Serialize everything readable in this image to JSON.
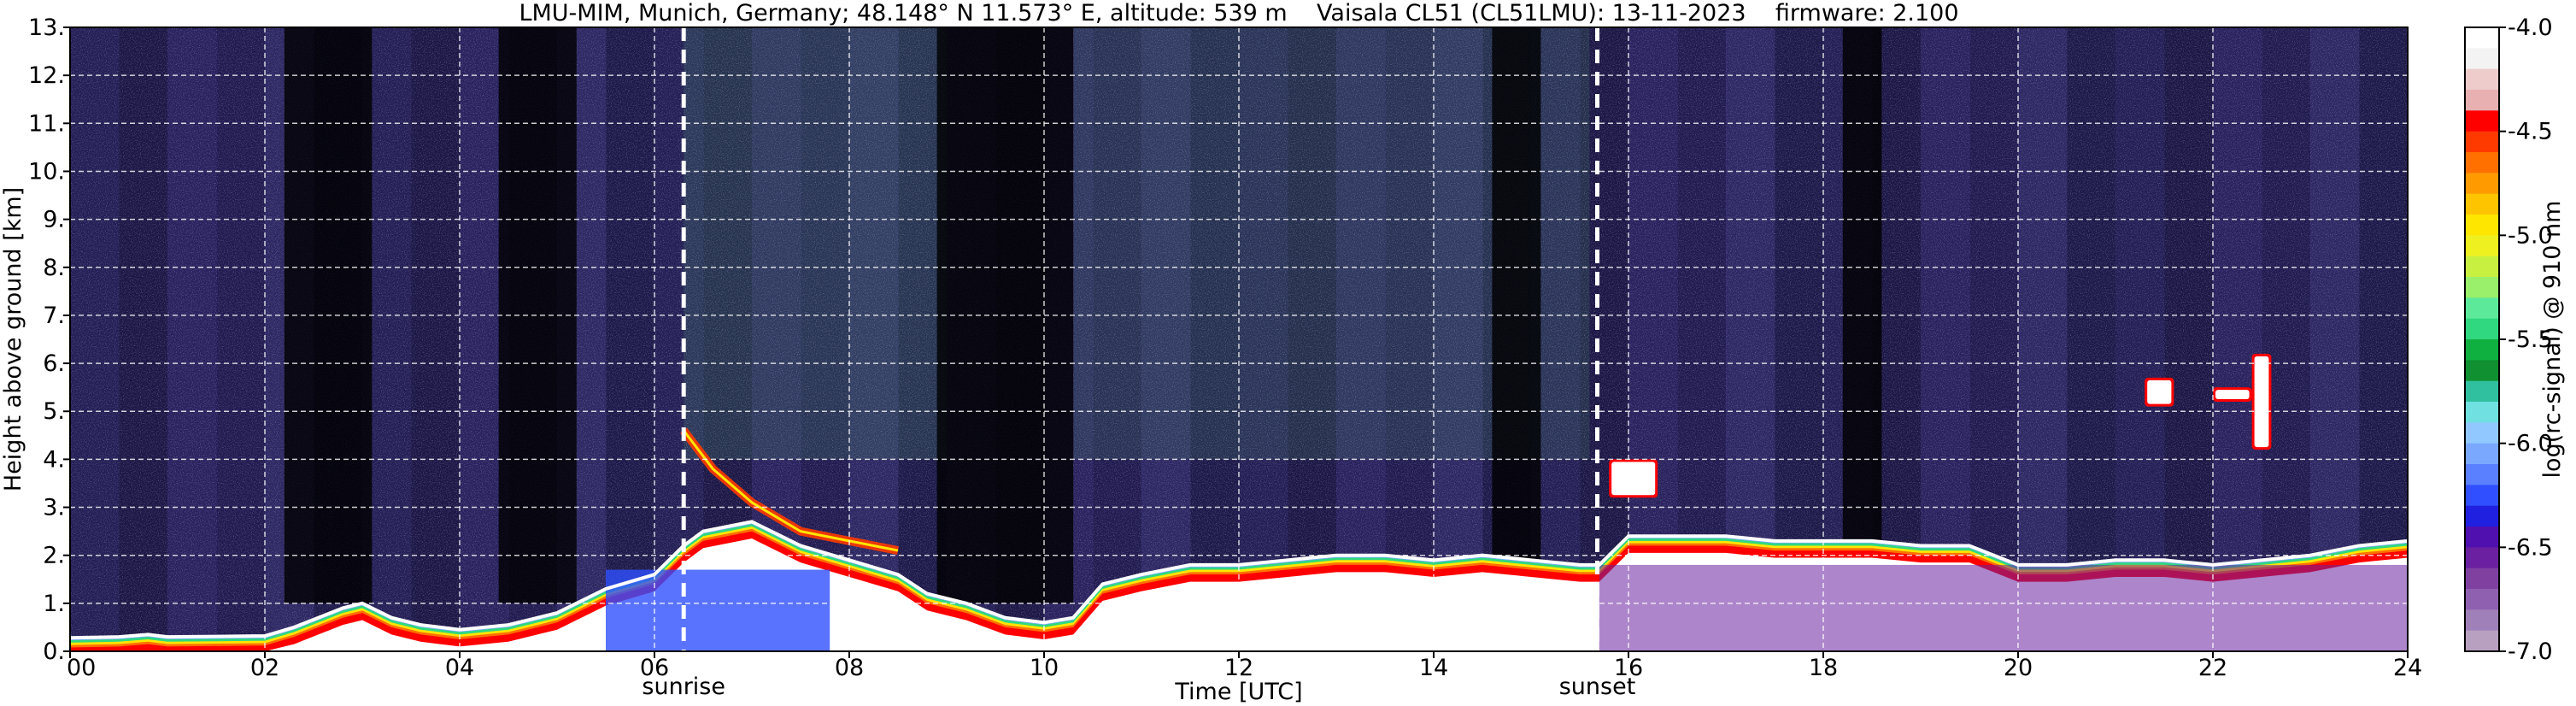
{
  "chart_data": {
    "type": "heatmap",
    "title": "LMU-MIM, Munich, Germany; 48.148° N 11.573° E, altitude: 539 m    Vaisala CL51 (CL51LMU): 13-11-2023    firmware: 2.100",
    "xlabel": "Time [UTC]",
    "ylabel": "Height above ground [km]",
    "xlim": [
      0,
      24
    ],
    "ylim": [
      0,
      13
    ],
    "x_ticks": [
      0,
      2,
      4,
      6,
      8,
      10,
      12,
      14,
      16,
      18,
      20,
      22,
      24
    ],
    "x_tick_labels": [
      "00",
      "02",
      "04",
      "06",
      "08",
      "10",
      "12",
      "14",
      "16",
      "18",
      "20",
      "22",
      "24"
    ],
    "y_ticks": [
      0,
      1,
      2,
      3,
      4,
      5,
      6,
      7,
      8,
      9,
      10,
      11,
      12,
      13
    ],
    "y_tick_labels": [
      "0.",
      "1.",
      "2.",
      "3.",
      "4.",
      "5.",
      "6.",
      "7.",
      "8.",
      "9.",
      "10.",
      "11.",
      "12.",
      "13."
    ],
    "grid": true,
    "markers": [
      {
        "label": "sunrise",
        "x": 6.3
      },
      {
        "label": "sunset",
        "x": 15.68
      }
    ],
    "colorbar": {
      "label": "log(rc-signal) @ 910 nm",
      "range": [
        -7.0,
        -4.0
      ],
      "tick_labels": [
        "-4.0",
        "-4.5",
        "-5.0",
        "-5.5",
        "-6.0",
        "-6.5",
        "-7.0"
      ],
      "tick_values": [
        -4.0,
        -4.5,
        -5.0,
        -5.5,
        -6.0,
        -6.5,
        -7.0
      ]
    },
    "colors": [
      "#ffffff",
      "#f3f3f3",
      "#eecccc",
      "#e8b0b0",
      "#ff0000",
      "#ff3a00",
      "#ff7000",
      "#ff9a00",
      "#ffc400",
      "#ffe600",
      "#eef020",
      "#c8f040",
      "#9af06a",
      "#5cea9a",
      "#30d880",
      "#10b040",
      "#109030",
      "#30c0a0",
      "#70e0e0",
      "#90c8ff",
      "#7aa8ff",
      "#5a80ff",
      "#3050ff",
      "#2020e0",
      "#5010b0",
      "#6a20a0",
      "#8040a0",
      "#9060b0",
      "#a080b8",
      "#b8a0c0"
    ],
    "features": {
      "boundary_layer_top": [
        [
          0,
          0.28
        ],
        [
          0.5,
          0.3
        ],
        [
          0.8,
          0.35
        ],
        [
          1,
          0.3
        ],
        [
          2,
          0.32
        ],
        [
          2.3,
          0.5
        ],
        [
          2.8,
          0.9
        ],
        [
          3,
          1.0
        ],
        [
          3.3,
          0.7
        ],
        [
          3.6,
          0.55
        ],
        [
          4,
          0.45
        ],
        [
          4.5,
          0.55
        ],
        [
          5,
          0.8
        ],
        [
          5.5,
          1.3
        ],
        [
          6,
          1.6
        ],
        [
          6.3,
          2.2
        ],
        [
          6.5,
          2.5
        ],
        [
          7,
          2.7
        ],
        [
          7.5,
          2.2
        ],
        [
          8,
          1.9
        ],
        [
          8.5,
          1.6
        ],
        [
          8.8,
          1.2
        ],
        [
          9.2,
          1.0
        ],
        [
          9.6,
          0.7
        ],
        [
          10,
          0.6
        ],
        [
          10.3,
          0.7
        ],
        [
          10.6,
          1.4
        ],
        [
          11,
          1.6
        ],
        [
          11.5,
          1.8
        ],
        [
          12,
          1.8
        ],
        [
          12.5,
          1.9
        ],
        [
          13,
          2.0
        ],
        [
          13.5,
          2.0
        ],
        [
          14,
          1.9
        ],
        [
          14.5,
          2.0
        ],
        [
          15,
          1.9
        ],
        [
          15.5,
          1.8
        ],
        [
          15.7,
          1.8
        ],
        [
          16,
          2.4
        ],
        [
          16.5,
          2.4
        ],
        [
          17,
          2.4
        ],
        [
          17.5,
          2.3
        ],
        [
          18,
          2.3
        ],
        [
          18.5,
          2.3
        ],
        [
          19,
          2.2
        ],
        [
          19.5,
          2.2
        ],
        [
          20,
          1.8
        ],
        [
          20.5,
          1.8
        ],
        [
          21,
          1.9
        ],
        [
          21.5,
          1.9
        ],
        [
          22,
          1.8
        ],
        [
          22.5,
          1.9
        ],
        [
          23,
          2.0
        ],
        [
          23.5,
          2.2
        ],
        [
          24,
          2.3
        ]
      ],
      "residual_layer_top": [
        [
          6.3,
          4.6
        ],
        [
          6.6,
          3.8
        ],
        [
          7,
          3.1
        ],
        [
          7.5,
          2.5
        ],
        [
          8,
          2.3
        ],
        [
          8.5,
          2.1
        ]
      ],
      "elevated_clouds": [
        {
          "x0": 21.3,
          "x1": 21.6,
          "y0": 5.1,
          "y1": 5.7
        },
        {
          "x0": 22.0,
          "x1": 22.4,
          "y0": 5.2,
          "y1": 5.5
        },
        {
          "x0": 22.4,
          "x1": 22.6,
          "y0": 4.2,
          "y1": 6.2
        },
        {
          "x0": 15.8,
          "x1": 16.3,
          "y0": 3.2,
          "y1": 4.0
        }
      ],
      "dark_columns": [
        [
          2.2,
          3.1
        ],
        [
          4.4,
          5.2
        ],
        [
          8.9,
          10.3
        ],
        [
          14.6,
          15.1
        ],
        [
          18.2,
          18.6
        ]
      ]
    }
  }
}
